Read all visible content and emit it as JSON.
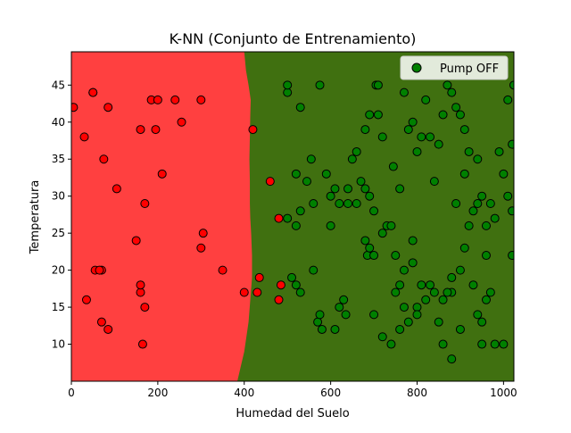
{
  "chart_data": {
    "type": "scatter",
    "title": "K-NN (Conjunto de Entrenamiento)",
    "xlabel": "Humedad del Suelo",
    "ylabel": "Temperatura",
    "xlim": [
      0,
      1024
    ],
    "ylim": [
      5,
      49.5
    ],
    "xticks": [
      "0",
      "200",
      "400",
      "600",
      "800",
      "1000"
    ],
    "yticks": [
      "10",
      "15",
      "20",
      "25",
      "30",
      "35",
      "40",
      "45"
    ],
    "grid": false,
    "legend": {
      "placement": "top-right",
      "entries": [
        "Pump OFF"
      ]
    },
    "colors": {
      "region_on": "#ff0000",
      "region_off": "#008000",
      "point_on": "#ff0000",
      "point_off": "#008000"
    },
    "decision_boundary": [
      [
        384,
        5
      ],
      [
        392,
        7
      ],
      [
        400,
        9
      ],
      [
        405,
        11
      ],
      [
        410,
        13
      ],
      [
        414,
        16
      ],
      [
        418,
        19
      ],
      [
        418,
        22
      ],
      [
        416,
        25
      ],
      [
        414,
        27
      ],
      [
        413,
        29
      ],
      [
        413,
        32
      ],
      [
        412,
        35
      ],
      [
        413,
        38
      ],
      [
        414,
        41
      ],
      [
        415,
        43
      ],
      [
        410,
        45
      ],
      [
        404,
        47
      ],
      [
        400,
        49.5
      ]
    ],
    "series": [
      {
        "name": "Pump OFF",
        "class": "off",
        "points": [
          [
            500,
            44
          ],
          [
            530,
            42
          ],
          [
            575,
            45
          ],
          [
            520,
            33
          ],
          [
            545,
            32
          ],
          [
            555,
            35
          ],
          [
            590,
            33
          ],
          [
            610,
            31
          ],
          [
            600,
            30
          ],
          [
            620,
            29
          ],
          [
            640,
            29
          ],
          [
            650,
            35
          ],
          [
            660,
            36
          ],
          [
            670,
            32
          ],
          [
            680,
            31
          ],
          [
            690,
            30
          ],
          [
            660,
            29
          ],
          [
            680,
            24
          ],
          [
            685,
            22
          ],
          [
            690,
            23
          ],
          [
            700,
            22
          ],
          [
            705,
            45
          ],
          [
            710,
            45
          ],
          [
            720,
            25
          ],
          [
            730,
            26
          ],
          [
            740,
            26
          ],
          [
            745,
            34
          ],
          [
            750,
            22
          ],
          [
            760,
            31
          ],
          [
            770,
            44
          ],
          [
            780,
            39
          ],
          [
            790,
            40
          ],
          [
            800,
            36
          ],
          [
            810,
            38
          ],
          [
            820,
            43
          ],
          [
            830,
            38
          ],
          [
            840,
            32
          ],
          [
            850,
            37
          ],
          [
            860,
            41
          ],
          [
            870,
            45
          ],
          [
            880,
            44
          ],
          [
            890,
            42
          ],
          [
            900,
            41
          ],
          [
            910,
            39
          ],
          [
            920,
            36
          ],
          [
            930,
            28
          ],
          [
            940,
            29
          ],
          [
            950,
            30
          ],
          [
            960,
            26
          ],
          [
            970,
            29
          ],
          [
            980,
            27
          ],
          [
            990,
            36
          ],
          [
            1000,
            33
          ],
          [
            1010,
            30
          ],
          [
            1020,
            28
          ],
          [
            1024,
            45
          ],
          [
            1020,
            37
          ],
          [
            1010,
            43
          ],
          [
            940,
            35
          ],
          [
            910,
            33
          ],
          [
            890,
            29
          ],
          [
            880,
            17
          ],
          [
            840,
            17
          ],
          [
            830,
            18
          ],
          [
            820,
            16
          ],
          [
            800,
            15
          ],
          [
            780,
            13
          ],
          [
            760,
            12
          ],
          [
            740,
            10
          ],
          [
            720,
            11
          ],
          [
            700,
            14
          ],
          [
            750,
            17
          ],
          [
            760,
            18
          ],
          [
            770,
            20
          ],
          [
            790,
            21
          ],
          [
            810,
            18
          ],
          [
            850,
            13
          ],
          [
            860,
            16
          ],
          [
            870,
            17
          ],
          [
            880,
            19
          ],
          [
            900,
            20
          ],
          [
            910,
            23
          ],
          [
            920,
            26
          ],
          [
            930,
            18
          ],
          [
            940,
            14
          ],
          [
            950,
            13
          ],
          [
            960,
            16
          ],
          [
            970,
            17
          ],
          [
            980,
            10
          ],
          [
            1000,
            10
          ],
          [
            1020,
            22
          ],
          [
            520,
            18
          ],
          [
            510,
            19
          ],
          [
            530,
            17
          ],
          [
            570,
            13
          ],
          [
            575,
            14
          ],
          [
            580,
            12
          ],
          [
            610,
            12
          ],
          [
            620,
            15
          ],
          [
            630,
            16
          ],
          [
            635,
            14
          ],
          [
            500,
            27
          ],
          [
            520,
            26
          ],
          [
            530,
            28
          ],
          [
            560,
            29
          ],
          [
            700,
            28
          ],
          [
            720,
            38
          ],
          [
            680,
            39
          ],
          [
            690,
            41
          ],
          [
            710,
            41
          ],
          [
            790,
            24
          ],
          [
            770,
            15
          ],
          [
            800,
            14
          ],
          [
            860,
            10
          ],
          [
            900,
            12
          ],
          [
            950,
            10
          ],
          [
            500,
            45
          ],
          [
            560,
            20
          ],
          [
            880,
            8
          ],
          [
            960,
            22
          ],
          [
            640,
            31
          ],
          [
            600,
            26
          ]
        ]
      },
      {
        "name": "",
        "class": "on",
        "points": [
          [
            5,
            42
          ],
          [
            30,
            38
          ],
          [
            50,
            44
          ],
          [
            85,
            42
          ],
          [
            55,
            20
          ],
          [
            70,
            20
          ],
          [
            75,
            35
          ],
          [
            105,
            31
          ],
          [
            150,
            24
          ],
          [
            160,
            39
          ],
          [
            170,
            29
          ],
          [
            185,
            43
          ],
          [
            195,
            39
          ],
          [
            200,
            43
          ],
          [
            210,
            33
          ],
          [
            240,
            43
          ],
          [
            255,
            40
          ],
          [
            300,
            43
          ],
          [
            305,
            25
          ],
          [
            300,
            23
          ],
          [
            350,
            20
          ],
          [
            400,
            17
          ],
          [
            420,
            39
          ],
          [
            430,
            17
          ],
          [
            435,
            19
          ],
          [
            460,
            32
          ],
          [
            480,
            27
          ],
          [
            485,
            18
          ],
          [
            480,
            16
          ],
          [
            35,
            16
          ],
          [
            70,
            13
          ],
          [
            85,
            12
          ],
          [
            160,
            17
          ],
          [
            170,
            15
          ],
          [
            160,
            18
          ],
          [
            165,
            10
          ],
          [
            65,
            20
          ],
          [
            50,
            44
          ]
        ]
      }
    ]
  }
}
